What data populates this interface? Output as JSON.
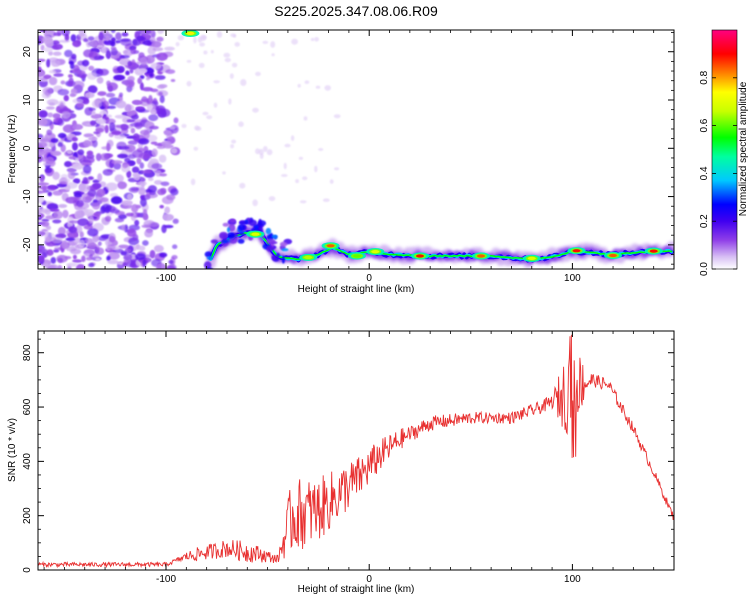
{
  "title": "S225.2025.347.08.06.R09",
  "chart_data": [
    {
      "type": "heatmap",
      "xlabel": "Height of straight line (km)",
      "ylabel": "Frequency (Hz)",
      "xlim": [
        -163,
        150
      ],
      "ylim": [
        -25,
        24.5
      ],
      "x_ticks": [
        -100,
        0,
        100
      ],
      "y_ticks": [
        -20,
        -10,
        0,
        10,
        20
      ],
      "colorbar": {
        "label": "Normalized spectral amplitude",
        "range": [
          0,
          1
        ],
        "ticks": [
          0.0,
          0.2,
          0.4,
          0.6,
          0.8
        ],
        "colormap": [
          "#ffffff",
          "#c8a8f0",
          "#7000e0",
          "#0000ff",
          "#00c8ff",
          "#00ff00",
          "#ffff00",
          "#ff8000",
          "#ff0000",
          "#ff0080"
        ]
      },
      "ridge": {
        "description_points": [
          {
            "x": -78,
            "y": -23
          },
          {
            "x": -75,
            "y": -20
          },
          {
            "x": -65,
            "y": -18
          },
          {
            "x": -55,
            "y": -17
          },
          {
            "x": -45,
            "y": -22.5
          },
          {
            "x": -35,
            "y": -23
          },
          {
            "x": -25,
            "y": -22
          },
          {
            "x": -18,
            "y": -20.5
          },
          {
            "x": -10,
            "y": -22
          },
          {
            "x": 0,
            "y": -21.5
          },
          {
            "x": 10,
            "y": -22
          },
          {
            "x": 30,
            "y": -22.3
          },
          {
            "x": 60,
            "y": -22.3
          },
          {
            "x": 80,
            "y": -23
          },
          {
            "x": 90,
            "y": -22.5
          },
          {
            "x": 100,
            "y": -21.3
          },
          {
            "x": 120,
            "y": -22
          },
          {
            "x": 140,
            "y": -21.3
          },
          {
            "x": 150,
            "y": -21.3
          }
        ],
        "hotspots": [
          {
            "x": -88,
            "y": 23.8,
            "v": 0.75
          },
          {
            "x": -56,
            "y": -17.8,
            "v": 0.7
          },
          {
            "x": -30,
            "y": -22.6,
            "v": 0.65
          },
          {
            "x": -19,
            "y": -20.2,
            "v": 0.85
          },
          {
            "x": -6,
            "y": -22.3,
            "v": 0.6
          },
          {
            "x": 3,
            "y": -21.4,
            "v": 0.7
          },
          {
            "x": 25,
            "y": -22.3,
            "v": 0.9
          },
          {
            "x": 55,
            "y": -22.3,
            "v": 0.85
          },
          {
            "x": 80,
            "y": -22.8,
            "v": 0.7
          },
          {
            "x": 102,
            "y": -21.2,
            "v": 0.9
          },
          {
            "x": 120,
            "y": -22.2,
            "v": 0.85
          },
          {
            "x": 140,
            "y": -21.3,
            "v": 0.9
          }
        ]
      },
      "noise_region_x": [
        -163,
        -95
      ]
    },
    {
      "type": "line",
      "xlabel": "Height of straight line (km)",
      "ylabel": "SNR (10 * v/v)",
      "xlim": [
        -163,
        150
      ],
      "ylim": [
        0,
        880
      ],
      "x_ticks": [
        -100,
        0,
        100
      ],
      "y_ticks": [
        0,
        200,
        400,
        600,
        800
      ],
      "color": "#e83030",
      "trend": [
        {
          "x": -163,
          "y": 20
        },
        {
          "x": -100,
          "y": 20
        },
        {
          "x": -90,
          "y": 50
        },
        {
          "x": -70,
          "y": 80
        },
        {
          "x": -55,
          "y": 60
        },
        {
          "x": -45,
          "y": 40
        },
        {
          "x": -38,
          "y": 200
        },
        {
          "x": -25,
          "y": 220
        },
        {
          "x": -15,
          "y": 280
        },
        {
          "x": -5,
          "y": 340
        },
        {
          "x": 5,
          "y": 420
        },
        {
          "x": 15,
          "y": 480
        },
        {
          "x": 30,
          "y": 540
        },
        {
          "x": 50,
          "y": 560
        },
        {
          "x": 70,
          "y": 560
        },
        {
          "x": 85,
          "y": 600
        },
        {
          "x": 95,
          "y": 640
        },
        {
          "x": 100,
          "y": 680
        },
        {
          "x": 110,
          "y": 700
        },
        {
          "x": 118,
          "y": 680
        },
        {
          "x": 130,
          "y": 520
        },
        {
          "x": 140,
          "y": 360
        },
        {
          "x": 150,
          "y": 190
        }
      ],
      "noise_amplitude": [
        {
          "x": -163,
          "y": 8
        },
        {
          "x": -95,
          "y": 8
        },
        {
          "x": -85,
          "y": 25
        },
        {
          "x": -60,
          "y": 40
        },
        {
          "x": -45,
          "y": 15
        },
        {
          "x": -38,
          "y": 140
        },
        {
          "x": -20,
          "y": 110
        },
        {
          "x": 0,
          "y": 70
        },
        {
          "x": 20,
          "y": 30
        },
        {
          "x": 60,
          "y": 20
        },
        {
          "x": 90,
          "y": 25
        },
        {
          "x": 98,
          "y": 170
        },
        {
          "x": 103,
          "y": 120
        },
        {
          "x": 110,
          "y": 25
        },
        {
          "x": 150,
          "y": 15
        }
      ]
    }
  ]
}
